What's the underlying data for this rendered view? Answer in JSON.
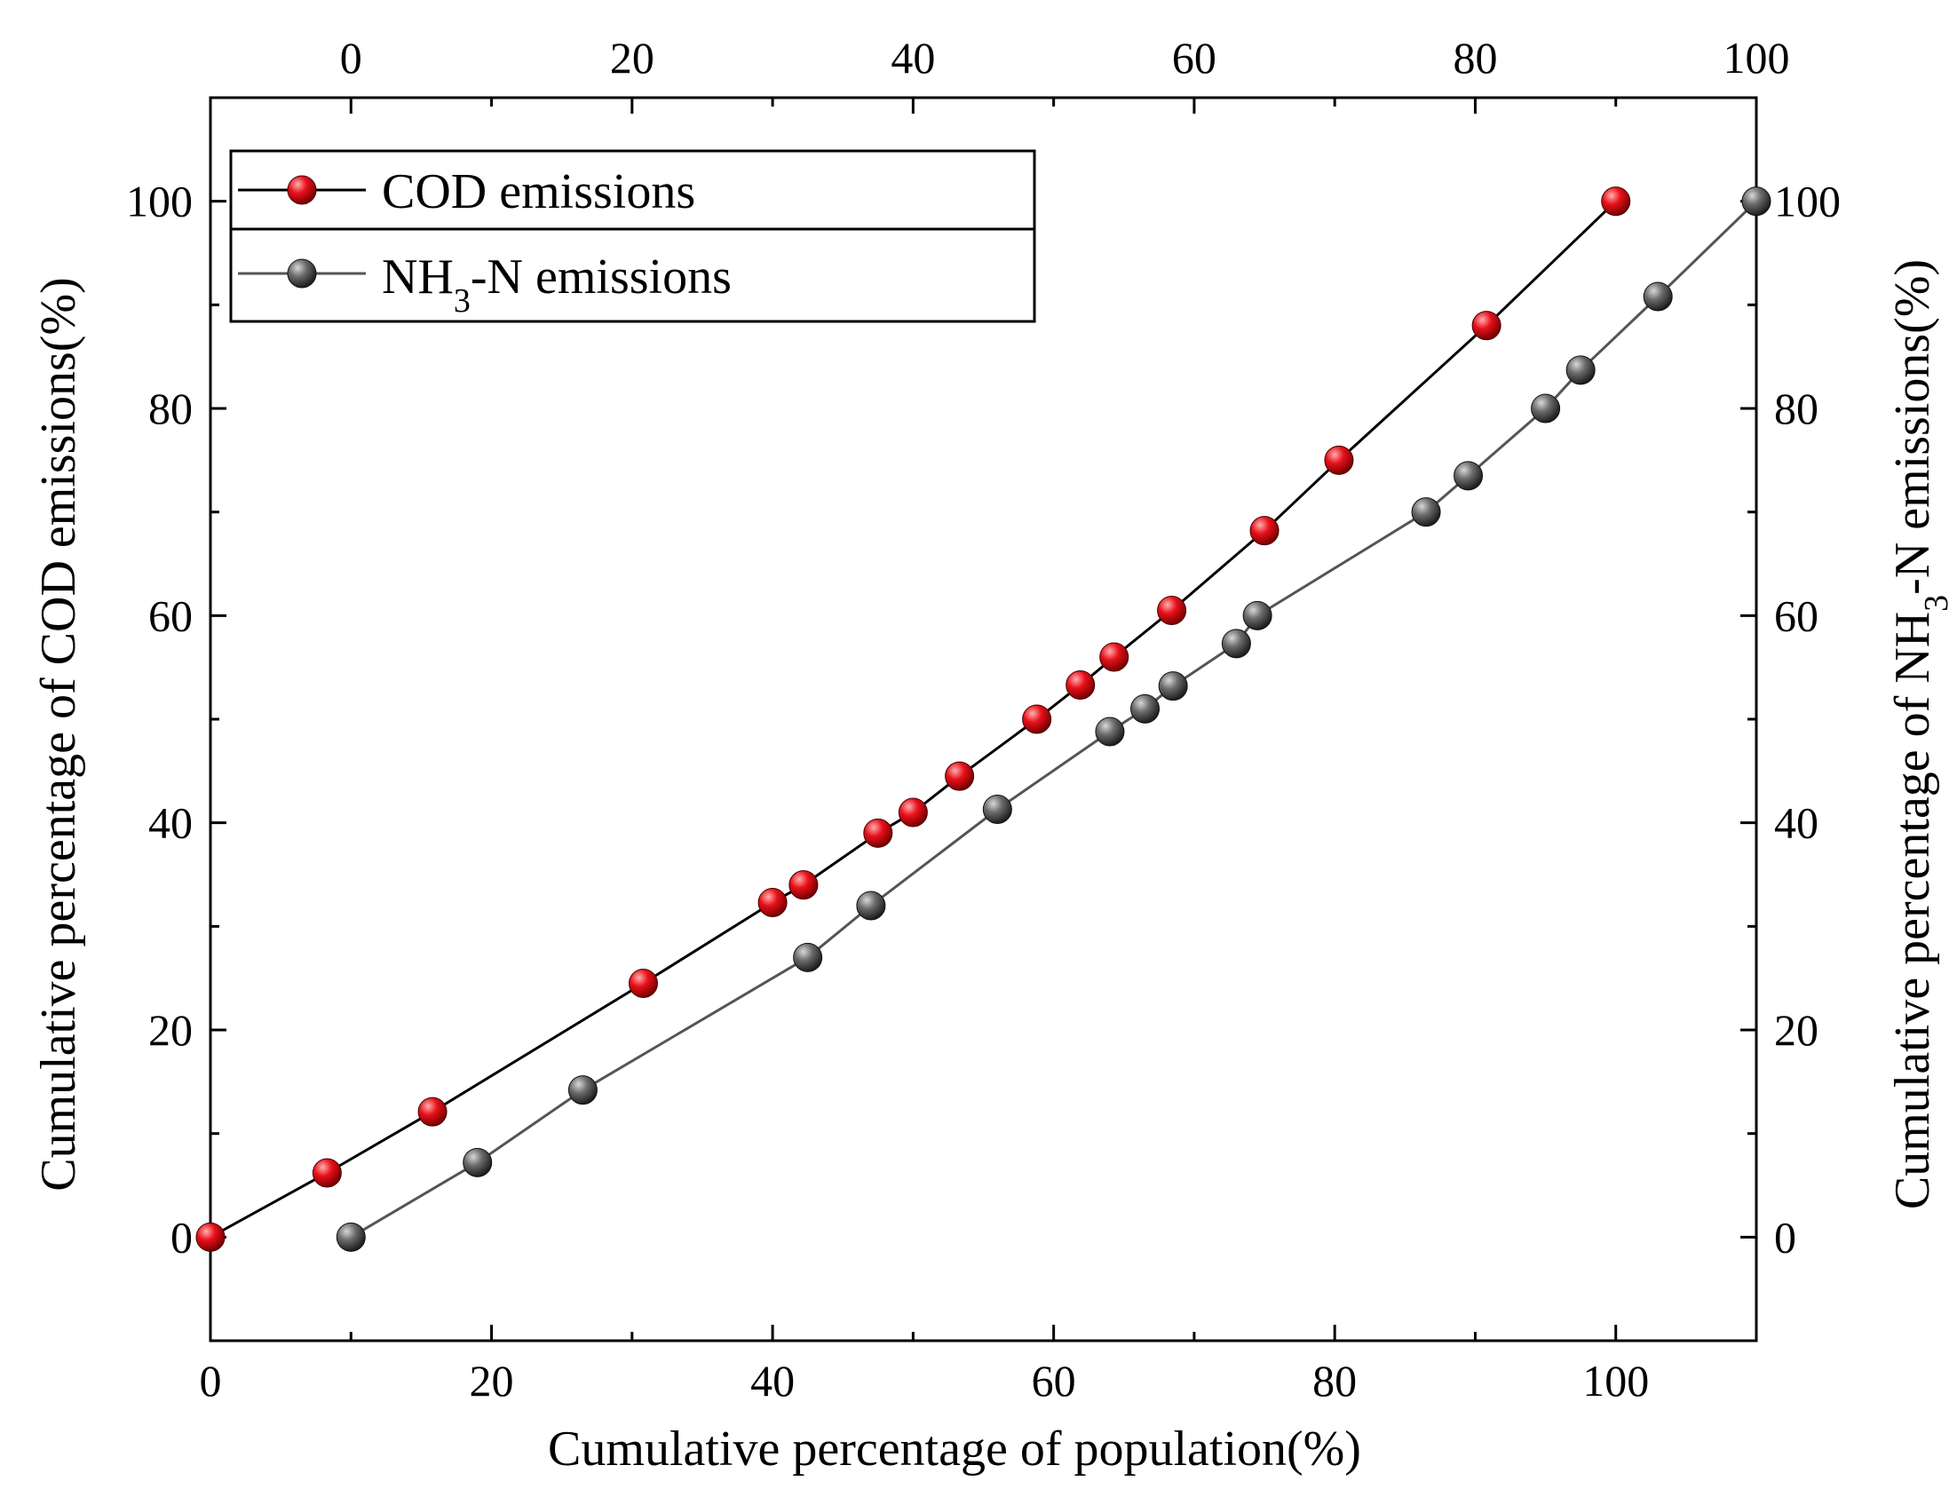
{
  "chart_data": {
    "type": "line",
    "xlabel": "Cumulative percentage of population(%)",
    "ylabel_left": "Cumulative percentage of COD emissions(%)",
    "ylabel_right": {
      "pre": "Cumulative percentage of NH",
      "sub": "3",
      "post": "-N emissions(%)"
    },
    "x_bottom": {
      "range": [
        0,
        110
      ],
      "ticks": [
        0,
        20,
        40,
        60,
        80,
        100
      ]
    },
    "x_top": {
      "range": [
        -10,
        100
      ],
      "ticks": [
        0,
        20,
        40,
        60,
        80,
        100
      ]
    },
    "y_left": {
      "range": [
        -10,
        110
      ],
      "ticks": [
        0,
        20,
        40,
        60,
        80,
        100
      ]
    },
    "y_right": {
      "range": [
        -10,
        110
      ],
      "ticks": [
        0,
        20,
        40,
        60,
        80,
        100
      ]
    },
    "grid": false,
    "legend_position": "top-left",
    "series": [
      {
        "name": "COD emissions",
        "axes": "bottom-left",
        "color": "#e8101a",
        "line_color": "#000000",
        "x": [
          0,
          8.3,
          15.8,
          30.8,
          40.0,
          42.2,
          47.5,
          50.0,
          53.3,
          58.8,
          61.9,
          64.3,
          68.4,
          75.0,
          80.3,
          90.8,
          100.0
        ],
        "y": [
          0,
          6.2,
          12.1,
          24.5,
          32.3,
          34.0,
          39.0,
          41.0,
          44.5,
          50.0,
          53.3,
          56.0,
          60.5,
          68.2,
          75.0,
          88.0,
          100.0
        ]
      },
      {
        "name_parts": {
          "pre": "NH",
          "sub": "3",
          "post": "-N emissions"
        },
        "axes": "top-right",
        "color": "#6b6b6b",
        "line_color": "#555555",
        "x": [
          0,
          9.0,
          16.5,
          32.5,
          37.0,
          46.0,
          54.0,
          56.5,
          58.5,
          63.0,
          64.5,
          76.5,
          79.5,
          85.0,
          87.5,
          93.0,
          100.0
        ],
        "y": [
          0,
          7.2,
          14.2,
          27.0,
          32.0,
          41.3,
          48.8,
          51.0,
          53.2,
          57.3,
          60.0,
          70.0,
          73.5,
          80.0,
          83.7,
          90.8,
          100.0
        ]
      }
    ]
  }
}
